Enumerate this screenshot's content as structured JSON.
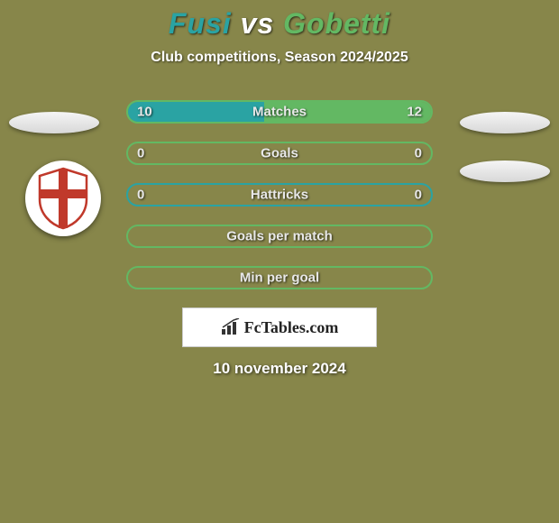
{
  "title": {
    "player1": "Fusi",
    "vs": "vs",
    "player2": "Gobetti"
  },
  "subtitle": "Club competitions, Season 2024/2025",
  "colors": {
    "player1": "#2aa3a3",
    "player2": "#63b863",
    "background": "#87864a",
    "barBorderPlayer1": "#2aa3a3",
    "barBorderPlayer2": "#63b863",
    "text": "#ffffff"
  },
  "bars": [
    {
      "label": "Matches",
      "left": "10",
      "right": "12",
      "leftPct": 45,
      "rightPct": 55,
      "borderColor": "#63b863"
    },
    {
      "label": "Goals",
      "left": "0",
      "right": "0",
      "leftPct": 0,
      "rightPct": 0,
      "borderColor": "#63b863"
    },
    {
      "label": "Hattricks",
      "left": "0",
      "right": "0",
      "leftPct": 0,
      "rightPct": 0,
      "borderColor": "#2aa3a3"
    },
    {
      "label": "Goals per match",
      "left": "",
      "right": "",
      "leftPct": 0,
      "rightPct": 0,
      "borderColor": "#63b863"
    },
    {
      "label": "Min per goal",
      "left": "",
      "right": "",
      "leftPct": 0,
      "rightPct": 0,
      "borderColor": "#63b863"
    }
  ],
  "attribution": "FcTables.com",
  "date": "10 november 2024"
}
